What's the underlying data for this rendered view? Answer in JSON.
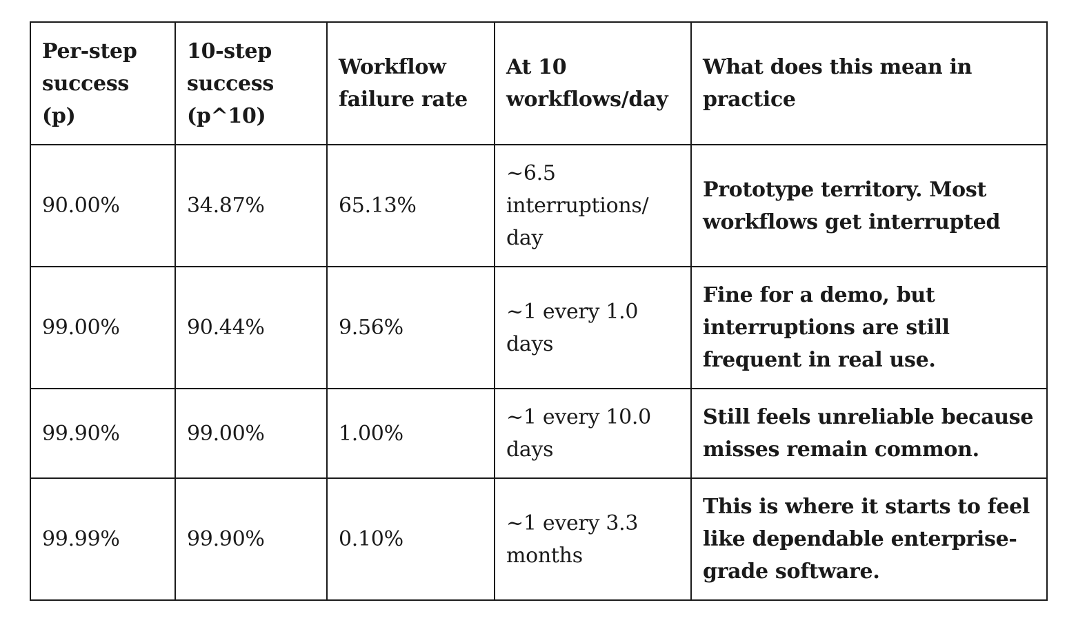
{
  "table": {
    "headers": [
      "Per-step success (p)",
      "10-step success (p^10)",
      "Workflow failure rate",
      "At 10 workflows/day",
      "What does this mean in practice"
    ],
    "rows": [
      {
        "per_step_success": "90.00%",
        "ten_step_success": "34.87%",
        "failure_rate": "65.13%",
        "at_10_per_day": "~6.5 interruptions/ day",
        "meaning": "Prototype territory. Most workflows get interrupted"
      },
      {
        "per_step_success": "99.00%",
        "ten_step_success": "90.44%",
        "failure_rate": "9.56%",
        "at_10_per_day": "~1 every 1.0 days",
        "meaning": "Fine for a demo, but interruptions are still frequent in real use."
      },
      {
        "per_step_success": "99.90%",
        "ten_step_success": "99.00%",
        "failure_rate": "1.00%",
        "at_10_per_day": "~1 every 10.0 days",
        "meaning": "Still feels unreliable because misses remain common."
      },
      {
        "per_step_success": "99.99%",
        "ten_step_success": "99.90%",
        "failure_rate": "0.10%",
        "at_10_per_day": "~1 every 3.3 months",
        "meaning": "This is where it starts to feel like dependable enterprise-grade software."
      }
    ]
  }
}
